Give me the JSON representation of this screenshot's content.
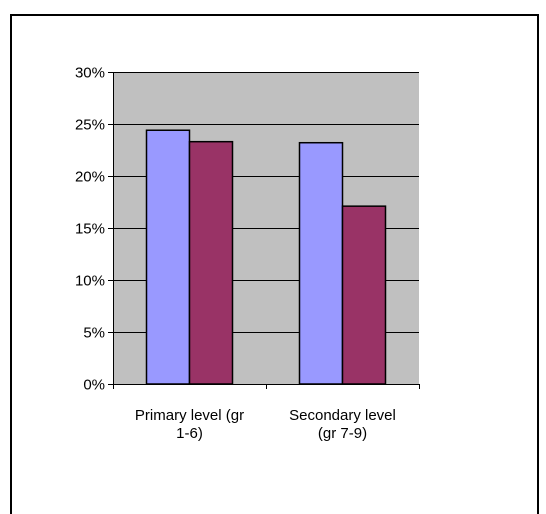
{
  "chart_data": {
    "type": "bar",
    "categories": [
      "Primary level (gr 1-6)",
      "Secondary level (gr 7-9)"
    ],
    "category_label_lines": [
      [
        "Primary level (gr",
        "1-6)"
      ],
      [
        "Secondary level",
        "(gr 7-9)"
      ]
    ],
    "series": [
      {
        "values": [
          0.244,
          0.232
        ],
        "color": "#9999ff"
      },
      {
        "values": [
          0.233,
          0.171
        ],
        "color": "#993366"
      }
    ],
    "ylim": [
      0,
      0.3
    ],
    "yticks": [
      0,
      0.05,
      0.1,
      0.15,
      0.2,
      0.25,
      0.3
    ],
    "ytick_labels": [
      "0%",
      "5%",
      "10%",
      "15%",
      "20%",
      "25%",
      "30%"
    ],
    "grid": true,
    "plot_background": "#c0c0c0",
    "legend": "none",
    "title": "",
    "xlabel": "",
    "ylabel": ""
  }
}
